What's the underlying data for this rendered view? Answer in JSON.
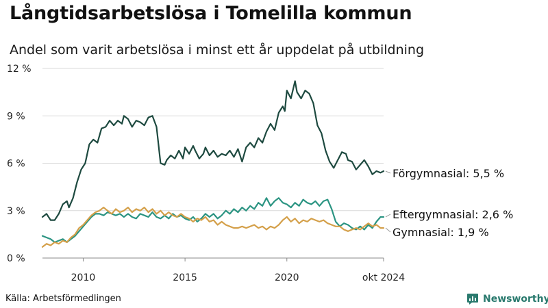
{
  "title": "Långtidsarbetslösa i Tomelilla kommun",
  "subtitle": "Andel som varit arbetslösa i minst ett år uppdelat på utbildning",
  "source": "Källa: Arbetsförmedlingen",
  "brand": {
    "name": "Newsworthy",
    "icon": "newsworthy-logo-icon",
    "color": "#2a7a6e"
  },
  "chart_data": {
    "type": "line",
    "xlabel": "",
    "ylabel": "",
    "x_range": [
      2008.0,
      2024.75
    ],
    "ylim": [
      0,
      12
    ],
    "grid": true,
    "y_ticks": [
      {
        "value": 0,
        "label": "0 %"
      },
      {
        "value": 3,
        "label": "3 %"
      },
      {
        "value": 6,
        "label": "6 %"
      },
      {
        "value": 9,
        "label": "9 %"
      },
      {
        "value": 12,
        "label": "12 %"
      }
    ],
    "x_ticks": [
      {
        "value": 2010,
        "label": "2010"
      },
      {
        "value": 2015,
        "label": "2015"
      },
      {
        "value": 2020,
        "label": "2020"
      },
      {
        "value": 2024.75,
        "label": "okt 2024"
      }
    ],
    "series": [
      {
        "name": "Förgymnasial",
        "end_label": "Förgymnasial: 5,5 %",
        "color": "#1e4a40",
        "points": [
          [
            2008.0,
            2.6
          ],
          [
            2008.2,
            2.8
          ],
          [
            2008.4,
            2.4
          ],
          [
            2008.6,
            2.4
          ],
          [
            2008.8,
            2.8
          ],
          [
            2009.0,
            3.4
          ],
          [
            2009.2,
            3.6
          ],
          [
            2009.3,
            3.2
          ],
          [
            2009.5,
            3.8
          ],
          [
            2009.7,
            4.8
          ],
          [
            2009.9,
            5.6
          ],
          [
            2010.1,
            6.0
          ],
          [
            2010.3,
            7.2
          ],
          [
            2010.5,
            7.5
          ],
          [
            2010.7,
            7.3
          ],
          [
            2010.9,
            8.2
          ],
          [
            2011.1,
            8.3
          ],
          [
            2011.3,
            8.7
          ],
          [
            2011.5,
            8.4
          ],
          [
            2011.7,
            8.7
          ],
          [
            2011.9,
            8.5
          ],
          [
            2012.0,
            9.0
          ],
          [
            2012.2,
            8.8
          ],
          [
            2012.4,
            8.3
          ],
          [
            2012.6,
            8.7
          ],
          [
            2012.8,
            8.6
          ],
          [
            2013.0,
            8.4
          ],
          [
            2013.2,
            8.9
          ],
          [
            2013.4,
            9.0
          ],
          [
            2013.6,
            8.3
          ],
          [
            2013.8,
            6.0
          ],
          [
            2014.0,
            5.9
          ],
          [
            2014.1,
            6.2
          ],
          [
            2014.3,
            6.5
          ],
          [
            2014.5,
            6.3
          ],
          [
            2014.7,
            6.8
          ],
          [
            2014.9,
            6.3
          ],
          [
            2015.0,
            7.0
          ],
          [
            2015.2,
            6.6
          ],
          [
            2015.4,
            7.1
          ],
          [
            2015.5,
            6.8
          ],
          [
            2015.7,
            6.3
          ],
          [
            2015.9,
            6.6
          ],
          [
            2016.0,
            7.0
          ],
          [
            2016.2,
            6.5
          ],
          [
            2016.4,
            6.8
          ],
          [
            2016.6,
            6.4
          ],
          [
            2016.8,
            6.6
          ],
          [
            2017.0,
            6.5
          ],
          [
            2017.2,
            6.8
          ],
          [
            2017.4,
            6.4
          ],
          [
            2017.6,
            6.9
          ],
          [
            2017.8,
            6.1
          ],
          [
            2018.0,
            7.0
          ],
          [
            2018.2,
            7.3
          ],
          [
            2018.4,
            7.0
          ],
          [
            2018.6,
            7.6
          ],
          [
            2018.8,
            7.3
          ],
          [
            2019.0,
            8.0
          ],
          [
            2019.2,
            8.5
          ],
          [
            2019.4,
            8.1
          ],
          [
            2019.6,
            9.2
          ],
          [
            2019.8,
            9.6
          ],
          [
            2019.9,
            9.3
          ],
          [
            2020.0,
            10.6
          ],
          [
            2020.2,
            10.1
          ],
          [
            2020.4,
            11.2
          ],
          [
            2020.5,
            10.5
          ],
          [
            2020.7,
            10.1
          ],
          [
            2020.9,
            10.6
          ],
          [
            2021.1,
            10.4
          ],
          [
            2021.3,
            9.8
          ],
          [
            2021.5,
            8.4
          ],
          [
            2021.7,
            7.9
          ],
          [
            2021.9,
            6.8
          ],
          [
            2022.1,
            6.1
          ],
          [
            2022.3,
            5.7
          ],
          [
            2022.5,
            6.2
          ],
          [
            2022.7,
            6.7
          ],
          [
            2022.9,
            6.6
          ],
          [
            2023.0,
            6.2
          ],
          [
            2023.2,
            6.1
          ],
          [
            2023.4,
            5.6
          ],
          [
            2023.6,
            5.9
          ],
          [
            2023.8,
            6.2
          ],
          [
            2024.0,
            5.8
          ],
          [
            2024.2,
            5.3
          ],
          [
            2024.4,
            5.5
          ],
          [
            2024.6,
            5.4
          ],
          [
            2024.75,
            5.5
          ]
        ]
      },
      {
        "name": "Eftergymnasial",
        "end_label": "Eftergymnasial: 2,6 %",
        "color": "#2b9482",
        "points": [
          [
            2008.0,
            1.4
          ],
          [
            2008.2,
            1.3
          ],
          [
            2008.4,
            1.2
          ],
          [
            2008.6,
            1.0
          ],
          [
            2008.8,
            1.1
          ],
          [
            2009.0,
            1.2
          ],
          [
            2009.2,
            1.0
          ],
          [
            2009.4,
            1.2
          ],
          [
            2009.6,
            1.4
          ],
          [
            2009.8,
            1.7
          ],
          [
            2010.0,
            2.0
          ],
          [
            2010.2,
            2.3
          ],
          [
            2010.4,
            2.6
          ],
          [
            2010.6,
            2.8
          ],
          [
            2010.8,
            2.8
          ],
          [
            2011.0,
            2.7
          ],
          [
            2011.2,
            2.9
          ],
          [
            2011.4,
            2.8
          ],
          [
            2011.6,
            2.7
          ],
          [
            2011.8,
            2.8
          ],
          [
            2012.0,
            2.6
          ],
          [
            2012.2,
            2.8
          ],
          [
            2012.4,
            2.6
          ],
          [
            2012.6,
            2.5
          ],
          [
            2012.8,
            2.8
          ],
          [
            2013.0,
            2.7
          ],
          [
            2013.2,
            2.6
          ],
          [
            2013.4,
            2.9
          ],
          [
            2013.6,
            2.6
          ],
          [
            2013.8,
            2.5
          ],
          [
            2014.0,
            2.7
          ],
          [
            2014.2,
            2.5
          ],
          [
            2014.4,
            2.8
          ],
          [
            2014.6,
            2.6
          ],
          [
            2014.8,
            2.7
          ],
          [
            2015.0,
            2.5
          ],
          [
            2015.2,
            2.4
          ],
          [
            2015.4,
            2.6
          ],
          [
            2015.6,
            2.3
          ],
          [
            2015.8,
            2.5
          ],
          [
            2016.0,
            2.8
          ],
          [
            2016.2,
            2.6
          ],
          [
            2016.4,
            2.8
          ],
          [
            2016.6,
            2.5
          ],
          [
            2016.8,
            2.7
          ],
          [
            2017.0,
            3.0
          ],
          [
            2017.2,
            2.8
          ],
          [
            2017.4,
            3.1
          ],
          [
            2017.6,
            2.9
          ],
          [
            2017.8,
            3.2
          ],
          [
            2018.0,
            3.0
          ],
          [
            2018.2,
            3.3
          ],
          [
            2018.4,
            3.1
          ],
          [
            2018.6,
            3.5
          ],
          [
            2018.8,
            3.3
          ],
          [
            2019.0,
            3.8
          ],
          [
            2019.2,
            3.3
          ],
          [
            2019.4,
            3.6
          ],
          [
            2019.6,
            3.8
          ],
          [
            2019.8,
            3.5
          ],
          [
            2020.0,
            3.4
          ],
          [
            2020.2,
            3.2
          ],
          [
            2020.4,
            3.5
          ],
          [
            2020.6,
            3.3
          ],
          [
            2020.8,
            3.7
          ],
          [
            2021.0,
            3.5
          ],
          [
            2021.2,
            3.4
          ],
          [
            2021.4,
            3.6
          ],
          [
            2021.6,
            3.3
          ],
          [
            2021.8,
            3.6
          ],
          [
            2022.0,
            3.7
          ],
          [
            2022.2,
            3.1
          ],
          [
            2022.4,
            2.3
          ],
          [
            2022.6,
            2.0
          ],
          [
            2022.8,
            2.2
          ],
          [
            2023.0,
            2.1
          ],
          [
            2023.2,
            1.9
          ],
          [
            2023.4,
            1.8
          ],
          [
            2023.6,
            2.0
          ],
          [
            2023.8,
            1.8
          ],
          [
            2024.0,
            2.1
          ],
          [
            2024.2,
            1.9
          ],
          [
            2024.4,
            2.3
          ],
          [
            2024.6,
            2.6
          ],
          [
            2024.75,
            2.6
          ]
        ]
      },
      {
        "name": "Gymnasial",
        "end_label": "Gymnasial: 1,9 %",
        "color": "#d4a04a",
        "points": [
          [
            2008.0,
            0.7
          ],
          [
            2008.2,
            0.9
          ],
          [
            2008.4,
            0.8
          ],
          [
            2008.6,
            1.0
          ],
          [
            2008.8,
            0.9
          ],
          [
            2009.0,
            1.1
          ],
          [
            2009.2,
            1.0
          ],
          [
            2009.4,
            1.3
          ],
          [
            2009.6,
            1.5
          ],
          [
            2009.8,
            1.9
          ],
          [
            2010.0,
            2.1
          ],
          [
            2010.2,
            2.4
          ],
          [
            2010.4,
            2.7
          ],
          [
            2010.6,
            2.9
          ],
          [
            2010.8,
            3.0
          ],
          [
            2011.0,
            3.2
          ],
          [
            2011.2,
            3.0
          ],
          [
            2011.4,
            2.8
          ],
          [
            2011.6,
            3.1
          ],
          [
            2011.8,
            2.9
          ],
          [
            2012.0,
            3.0
          ],
          [
            2012.2,
            3.2
          ],
          [
            2012.4,
            2.9
          ],
          [
            2012.6,
            3.1
          ],
          [
            2012.8,
            3.0
          ],
          [
            2013.0,
            3.2
          ],
          [
            2013.2,
            2.9
          ],
          [
            2013.4,
            3.1
          ],
          [
            2013.6,
            2.8
          ],
          [
            2013.8,
            3.0
          ],
          [
            2014.0,
            2.7
          ],
          [
            2014.2,
            2.9
          ],
          [
            2014.4,
            2.7
          ],
          [
            2014.6,
            2.6
          ],
          [
            2014.8,
            2.8
          ],
          [
            2015.0,
            2.6
          ],
          [
            2015.2,
            2.5
          ],
          [
            2015.4,
            2.3
          ],
          [
            2015.6,
            2.5
          ],
          [
            2015.8,
            2.4
          ],
          [
            2016.0,
            2.6
          ],
          [
            2016.2,
            2.3
          ],
          [
            2016.4,
            2.4
          ],
          [
            2016.6,
            2.1
          ],
          [
            2016.8,
            2.3
          ],
          [
            2017.0,
            2.1
          ],
          [
            2017.2,
            2.0
          ],
          [
            2017.4,
            1.9
          ],
          [
            2017.6,
            1.9
          ],
          [
            2017.8,
            2.0
          ],
          [
            2018.0,
            1.9
          ],
          [
            2018.2,
            2.0
          ],
          [
            2018.4,
            2.1
          ],
          [
            2018.6,
            1.9
          ],
          [
            2018.8,
            2.0
          ],
          [
            2019.0,
            1.8
          ],
          [
            2019.2,
            2.0
          ],
          [
            2019.4,
            1.9
          ],
          [
            2019.6,
            2.1
          ],
          [
            2019.8,
            2.4
          ],
          [
            2020.0,
            2.6
          ],
          [
            2020.2,
            2.3
          ],
          [
            2020.4,
            2.5
          ],
          [
            2020.6,
            2.2
          ],
          [
            2020.8,
            2.4
          ],
          [
            2021.0,
            2.3
          ],
          [
            2021.2,
            2.5
          ],
          [
            2021.4,
            2.4
          ],
          [
            2021.6,
            2.3
          ],
          [
            2021.8,
            2.4
          ],
          [
            2022.0,
            2.2
          ],
          [
            2022.2,
            2.1
          ],
          [
            2022.4,
            2.0
          ],
          [
            2022.6,
            2.0
          ],
          [
            2022.8,
            1.8
          ],
          [
            2023.0,
            1.7
          ],
          [
            2023.2,
            1.8
          ],
          [
            2023.4,
            1.9
          ],
          [
            2023.6,
            1.8
          ],
          [
            2023.8,
            2.0
          ],
          [
            2024.0,
            2.2
          ],
          [
            2024.2,
            2.0
          ],
          [
            2024.4,
            2.1
          ],
          [
            2024.6,
            1.9
          ],
          [
            2024.75,
            1.9
          ]
        ]
      }
    ]
  }
}
